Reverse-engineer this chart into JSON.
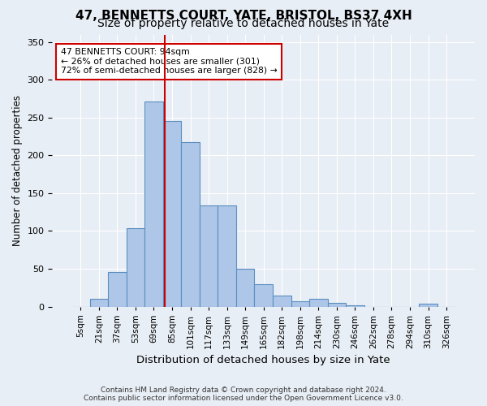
{
  "title": "47, BENNETTS COURT, YATE, BRISTOL, BS37 4XH",
  "subtitle": "Size of property relative to detached houses in Yate",
  "xlabel": "Distribution of detached houses by size in Yate",
  "ylabel": "Number of detached properties",
  "footer": "Contains HM Land Registry data © Crown copyright and database right 2024.\nContains public sector information licensed under the Open Government Licence v3.0.",
  "bin_labels": [
    "5sqm",
    "21sqm",
    "37sqm",
    "53sqm",
    "69sqm",
    "85sqm",
    "101sqm",
    "117sqm",
    "133sqm",
    "149sqm",
    "165sqm",
    "182sqm",
    "198sqm",
    "214sqm",
    "230sqm",
    "246sqm",
    "262sqm",
    "278sqm",
    "294sqm",
    "310sqm",
    "326sqm"
  ],
  "bar_values": [
    0,
    10,
    46,
    104,
    271,
    246,
    218,
    134,
    134,
    50,
    30,
    15,
    7,
    10,
    5,
    2,
    0,
    0,
    0,
    4,
    0
  ],
  "bar_color": "#aec6e8",
  "bar_edge_color": "#5a8fc0",
  "vline_x": 4.6,
  "annotation_text": "47 BENNETTS COURT: 94sqm\n← 26% of detached houses are smaller (301)\n72% of semi-detached houses are larger (828) →",
  "annotation_box_color": "#ffffff",
  "annotation_box_edge": "#cc0000",
  "vline_color": "#cc0000",
  "ylim": [
    0,
    360
  ],
  "yticks": [
    0,
    50,
    100,
    150,
    200,
    250,
    300,
    350
  ],
  "background_color": "#e8eef5",
  "plot_background": "#e8eef5",
  "grid_color": "#ffffff",
  "title_fontsize": 11,
  "subtitle_fontsize": 10
}
